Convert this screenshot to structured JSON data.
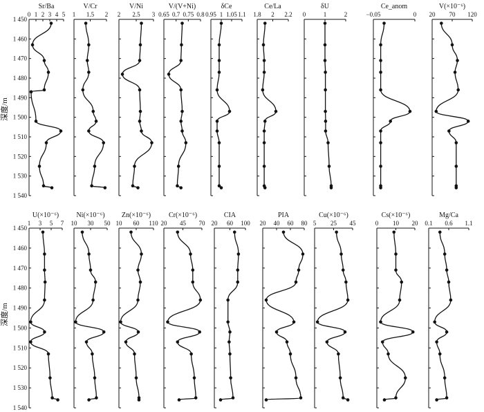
{
  "figure": {
    "ylabel": "深度/m",
    "depth_ticks": [
      "1 450",
      "1 460",
      "1 470",
      "1 480",
      "1 490",
      "1 500",
      "1 510",
      "1 520",
      "1 530",
      "1 540"
    ]
  },
  "chart_data": [
    {
      "type": "line",
      "title": "Sr/Ba",
      "xlim": [
        0,
        5
      ],
      "xticks": [
        "0",
        "1",
        "2",
        "3",
        "4",
        "5"
      ],
      "ylim": [
        1450,
        1540
      ],
      "x": [
        3.2,
        0.5,
        2.2,
        2.8,
        2.2,
        0.3,
        1.0,
        4.6,
        2.5,
        1.5,
        2.1,
        3.3
      ],
      "y": [
        1452,
        1463,
        1471,
        1477,
        1486,
        1487,
        1502,
        1507,
        1513,
        1525,
        1535,
        1536
      ]
    },
    {
      "type": "line",
      "title": "V/Cr",
      "xlim": [
        1,
        2.1
      ],
      "xticks": [
        "1",
        "1.5",
        "2"
      ],
      "ylim": [
        1450,
        1540
      ],
      "x": [
        1.4,
        1.5,
        1.45,
        1.5,
        1.3,
        1.65,
        1.75,
        1.5,
        2.0,
        1.7,
        1.6,
        2.05
      ],
      "y": [
        1452,
        1463,
        1471,
        1477,
        1486,
        1497,
        1502,
        1507,
        1513,
        1525,
        1535,
        1536
      ]
    },
    {
      "type": "line",
      "title": "V/Ni",
      "xlim": [
        2,
        3
      ],
      "xticks": [
        "2",
        "2.5",
        "3"
      ],
      "ylim": [
        1450,
        1540
      ],
      "x": [
        2.65,
        2.62,
        2.6,
        2.1,
        2.6,
        2.62,
        2.6,
        2.65,
        2.95,
        2.45,
        2.4,
        2.55
      ],
      "y": [
        1452,
        1463,
        1471,
        1478,
        1486,
        1497,
        1502,
        1507,
        1513,
        1525,
        1535,
        1536
      ]
    },
    {
      "type": "line",
      "title": "V/(V+Ni)",
      "xlim": [
        0.65,
        0.8
      ],
      "xticks": [
        "0.65",
        "0.7",
        "0.75",
        "0.8"
      ],
      "ylim": [
        1450,
        1540
      ],
      "x": [
        0.725,
        0.722,
        0.72,
        0.67,
        0.72,
        0.725,
        0.72,
        0.725,
        0.74,
        0.71,
        0.705,
        0.72
      ],
      "y": [
        1452,
        1463,
        1471,
        1478,
        1486,
        1497,
        1502,
        1507,
        1513,
        1525,
        1535,
        1536
      ]
    },
    {
      "type": "line",
      "title": "δCe",
      "xlim": [
        0.95,
        1.1
      ],
      "xticks": [
        "0.95",
        "1",
        "1.05",
        "1.1"
      ],
      "ylim": [
        1450,
        1540
      ],
      "x": [
        1.0,
        0.99,
        0.99,
        0.99,
        0.98,
        1.04,
        0.98,
        0.98,
        0.99,
        0.99,
        0.99,
        1.0
      ],
      "y": [
        1452,
        1463,
        1471,
        1477,
        1486,
        1497,
        1502,
        1507,
        1513,
        1525,
        1535,
        1536
      ]
    },
    {
      "type": "line",
      "title": "Ce/La",
      "xlim": [
        1.8,
        2.2
      ],
      "xticks": [
        "1.8",
        "2",
        "2.2"
      ],
      "ylim": [
        1450,
        1540
      ],
      "x": [
        1.9,
        1.88,
        1.89,
        1.89,
        1.87,
        2.04,
        1.9,
        1.89,
        1.89,
        1.89,
        1.89,
        1.9
      ],
      "y": [
        1452,
        1463,
        1471,
        1477,
        1486,
        1497,
        1502,
        1507,
        1513,
        1525,
        1535,
        1536
      ]
    },
    {
      "type": "line",
      "title": "δU",
      "xlim": [
        0,
        2
      ],
      "xticks": [
        "0",
        "1",
        "2"
      ],
      "ylim": [
        1450,
        1540
      ],
      "x": [
        1.0,
        1.0,
        1.0,
        1.02,
        1.02,
        1.02,
        1.03,
        1.03,
        1.15,
        1.2,
        1.3,
        1.3
      ],
      "y": [
        1452,
        1463,
        1471,
        1477,
        1486,
        1497,
        1502,
        1507,
        1513,
        1525,
        1535,
        1536
      ]
    },
    {
      "type": "line",
      "title": "Ce_anom",
      "xlim": [
        -0.075,
        0.01
      ],
      "xticks": [
        "−0.05",
        "0"
      ],
      "ylim": [
        1450,
        1540
      ],
      "x": [
        -0.053,
        -0.06,
        -0.06,
        -0.06,
        -0.06,
        0.0,
        -0.04,
        -0.06,
        -0.06,
        -0.06,
        -0.06,
        -0.06
      ],
      "y": [
        1452,
        1463,
        1471,
        1477,
        1486,
        1497,
        1502,
        1507,
        1513,
        1525,
        1535,
        1536
      ]
    },
    {
      "type": "line",
      "title": "V(×10⁻⁶)",
      "xlim": [
        20,
        120
      ],
      "xticks": [
        "20",
        "70",
        "120"
      ],
      "ylim": [
        1450,
        1540
      ],
      "x": [
        43,
        70,
        83,
        77,
        85,
        30,
        110,
        62,
        80,
        80,
        80,
        80
      ],
      "y": [
        1452,
        1463,
        1471,
        1477,
        1486,
        1497,
        1502,
        1507,
        1513,
        1525,
        1535,
        1536
      ]
    },
    {
      "type": "line",
      "title": "U(×10⁻⁶)",
      "xlim": [
        1,
        7
      ],
      "xticks": [
        "1",
        "3",
        "5",
        "7"
      ],
      "ylim": [
        1450,
        1540
      ],
      "x": [
        3.5,
        3.8,
        3.8,
        3.9,
        3.8,
        1.3,
        3.8,
        1.3,
        4.5,
        4.8,
        5.2,
        6.2
      ],
      "y": [
        1452,
        1463,
        1471,
        1477,
        1486,
        1497,
        1502,
        1507,
        1513,
        1525,
        1535,
        1536
      ]
    },
    {
      "type": "line",
      "title": "Ni(×10⁻⁶)",
      "xlim": [
        10,
        50
      ],
      "xticks": [
        "10",
        "30",
        "50"
      ],
      "ylim": [
        1450,
        1540
      ],
      "x": [
        20,
        28,
        30,
        36,
        33,
        12,
        46,
        25,
        32,
        35,
        37,
        28
      ],
      "y": [
        1452,
        1463,
        1471,
        1477,
        1486,
        1497,
        1502,
        1507,
        1513,
        1525,
        1535,
        1536
      ]
    },
    {
      "type": "line",
      "title": "Zn(×10⁻⁶)",
      "xlim": [
        10,
        110
      ],
      "xticks": [
        "10",
        "60",
        "110"
      ],
      "ylim": [
        1450,
        1540
      ],
      "x": [
        45,
        75,
        65,
        72,
        65,
        15,
        66,
        30,
        55,
        60,
        68,
        68
      ],
      "y": [
        1452,
        1463,
        1471,
        1477,
        1486,
        1497,
        1502,
        1507,
        1513,
        1525,
        1535,
        1536
      ]
    },
    {
      "type": "line",
      "title": "Cr(×10⁻⁶)",
      "xlim": [
        20,
        70
      ],
      "xticks": [
        "20",
        "45",
        "70"
      ],
      "ylim": [
        1450,
        1540
      ],
      "x": [
        38,
        55,
        58,
        58,
        68,
        25,
        67,
        38,
        56,
        60,
        62,
        40
      ],
      "y": [
        1452,
        1463,
        1471,
        1477,
        1486,
        1497,
        1502,
        1507,
        1513,
        1525,
        1535,
        1536
      ]
    },
    {
      "type": "line",
      "title": "CIA",
      "xlim": [
        20,
        100
      ],
      "xticks": [
        "20",
        "60",
        "100"
      ],
      "ylim": [
        1450,
        1540
      ],
      "x": [
        72,
        82,
        80,
        80,
        55,
        55,
        60,
        58,
        60,
        62,
        68,
        36
      ],
      "y": [
        1452,
        1463,
        1471,
        1477,
        1486,
        1497,
        1502,
        1507,
        1513,
        1525,
        1535,
        1536
      ]
    },
    {
      "type": "line",
      "title": "PIA",
      "xlim": [
        20,
        80
      ],
      "xticks": [
        "20",
        "40",
        "60",
        "80"
      ],
      "ylim": [
        1450,
        1540
      ],
      "x": [
        50,
        78,
        72,
        68,
        25,
        65,
        40,
        55,
        60,
        68,
        75,
        25
      ],
      "y": [
        1452,
        1463,
        1471,
        1477,
        1486,
        1497,
        1502,
        1507,
        1513,
        1525,
        1535,
        1536
      ]
    },
    {
      "type": "line",
      "title": "Cu(×10⁻⁶)",
      "xlim": [
        5,
        45
      ],
      "xticks": [
        "5",
        "25",
        "45"
      ],
      "ylim": [
        1450,
        1540
      ],
      "x": [
        28,
        33,
        35,
        38,
        40,
        8,
        37,
        18,
        30,
        32,
        35,
        40
      ],
      "y": [
        1452,
        1463,
        1471,
        1477,
        1486,
        1497,
        1502,
        1507,
        1513,
        1525,
        1535,
        1536
      ]
    },
    {
      "type": "line",
      "title": "Cs(×10⁻⁶)",
      "xlim": [
        0,
        20
      ],
      "xticks": [
        "0",
        "10",
        "20"
      ],
      "ylim": [
        1450,
        1540
      ],
      "x": [
        9,
        10,
        10,
        13,
        12,
        2,
        19,
        3,
        6,
        15,
        10,
        4
      ],
      "y": [
        1452,
        1463,
        1471,
        1477,
        1486,
        1497,
        1502,
        1507,
        1513,
        1525,
        1535,
        1536
      ]
    },
    {
      "type": "line",
      "title": "Mg/Ca",
      "xlim": [
        0.1,
        1.1
      ],
      "xticks": [
        "0.1",
        "0.6",
        "1.1"
      ],
      "ylim": [
        1450,
        1540
      ],
      "x": [
        0.38,
        0.5,
        0.55,
        0.6,
        0.65,
        0.25,
        0.55,
        0.3,
        0.38,
        0.5,
        0.55,
        0.3
      ],
      "y": [
        1452,
        1463,
        1471,
        1477,
        1486,
        1497,
        1502,
        1507,
        1513,
        1525,
        1535,
        1536
      ]
    }
  ]
}
